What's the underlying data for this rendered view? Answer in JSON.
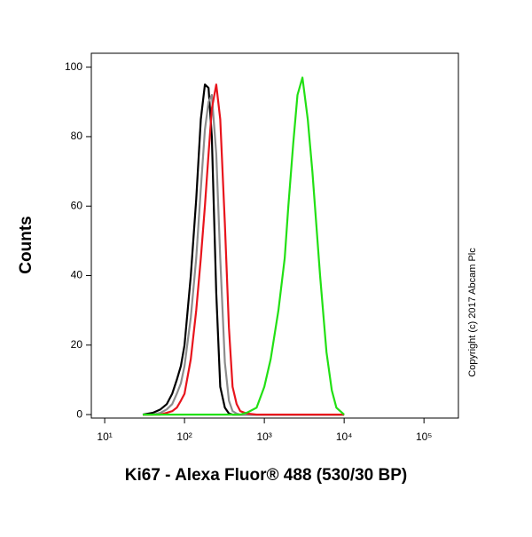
{
  "chart_data": {
    "type": "line",
    "x_label": "Ki67 - Alexa Fluor® 488 (530/30 BP)",
    "y_label": "Counts",
    "annotation": "Copyright (c) 2017 Abcam Plc",
    "x_log": true,
    "x": [
      30,
      40,
      50,
      60,
      70,
      80,
      90,
      100,
      120,
      140,
      160,
      180,
      200,
      220,
      250,
      280,
      320,
      360,
      400,
      450,
      500,
      600,
      800,
      1000,
      1200,
      1500,
      1800,
      2000,
      2300,
      2600,
      3000,
      3500,
      4000,
      5000,
      6000,
      7000,
      8000,
      10000
    ],
    "series": [
      {
        "color": "#000000",
        "values": [
          0,
          0.5,
          1.5,
          3,
          6,
          10,
          14,
          20,
          40,
          62,
          85,
          95,
          94,
          80,
          35,
          8,
          2,
          0.3,
          0,
          0,
          0,
          0,
          0,
          0,
          0,
          0,
          0,
          0,
          0,
          0,
          0,
          0,
          0,
          0,
          0,
          0,
          0,
          0
        ]
      },
      {
        "color": "#8c8c8c",
        "values": [
          0,
          0,
          0.5,
          1.5,
          3,
          6,
          9,
          14,
          28,
          45,
          65,
          82,
          90,
          92,
          75,
          45,
          15,
          4,
          1,
          0.3,
          0,
          0,
          0,
          0,
          0,
          0,
          0,
          0,
          0,
          0,
          0,
          0,
          0,
          0,
          0,
          0,
          0,
          0
        ]
      },
      {
        "color": "#e8141c",
        "values": [
          0,
          0,
          0,
          0.5,
          1,
          2,
          4,
          6,
          16,
          30,
          45,
          60,
          75,
          88,
          95,
          85,
          55,
          25,
          8,
          3,
          1,
          0.3,
          0,
          0,
          0,
          0,
          0,
          0,
          0,
          0,
          0,
          0,
          0,
          0,
          0,
          0,
          0,
          0
        ]
      },
      {
        "color": "#22e014",
        "values": [
          0,
          0,
          0,
          0,
          0,
          0,
          0,
          0,
          0,
          0,
          0,
          0,
          0,
          0,
          0,
          0,
          0,
          0,
          0,
          0,
          0,
          0.5,
          2,
          8,
          16,
          30,
          45,
          60,
          78,
          92,
          97,
          85,
          70,
          40,
          18,
          7,
          2,
          0
        ]
      }
    ],
    "xlim": [
      6.8,
      270000
    ],
    "xticks": [
      {
        "value": 10,
        "label": "10¹"
      },
      {
        "value": 100,
        "label": "10²"
      },
      {
        "value": 1000,
        "label": "10³"
      },
      {
        "value": 10000,
        "label": "10⁴"
      },
      {
        "value": 100000,
        "label": "10⁵"
      }
    ],
    "ylim": [
      -1,
      104
    ],
    "yticks": [
      0,
      20,
      40,
      60,
      80,
      100
    ]
  }
}
